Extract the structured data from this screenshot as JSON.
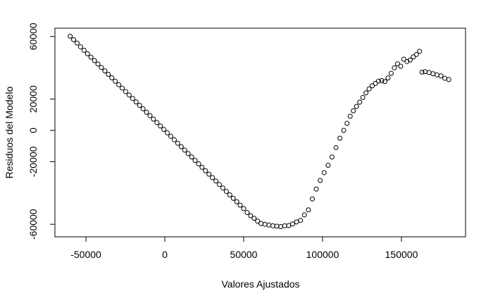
{
  "chart_data": {
    "type": "scatter",
    "xlabel": "Valores Ajustados",
    "ylabel": "Residuos del Modelo",
    "color": "#000000",
    "xlim": [
      -69643,
      190625
    ],
    "ylim": [
      -68018,
      65315
    ],
    "xticks": [
      -50000,
      0,
      50000,
      100000,
      150000
    ],
    "yticks": [
      -60000,
      -20000,
      0,
      20000,
      60000
    ],
    "x": [
      -60000,
      -57800,
      -55600,
      -53400,
      -51200,
      -49000,
      -46800,
      -44600,
      -42400,
      -40200,
      -38000,
      -35800,
      -33600,
      -31400,
      -29200,
      -27000,
      -24800,
      -22600,
      -20400,
      -18200,
      -16000,
      -13800,
      -11600,
      -9400,
      -7200,
      -5000,
      -2800,
      -600,
      1600,
      3800,
      6000,
      8200,
      10400,
      12600,
      14800,
      17000,
      19200,
      21400,
      23600,
      25800,
      28000,
      30200,
      32400,
      34600,
      36800,
      39000,
      41200,
      43400,
      45600,
      47800,
      50000,
      52200,
      54400,
      56600,
      58800,
      61000,
      63500,
      66000,
      68500,
      71000,
      73500,
      76000,
      78500,
      81000,
      83500,
      86000,
      88500,
      91000,
      93500,
      96000,
      98500,
      101000,
      103500,
      106000,
      108500,
      111000,
      113400,
      115500,
      117500,
      119500,
      121500,
      123500,
      125500,
      127500,
      129500,
      131500,
      133500,
      135500,
      137500,
      139500,
      141500,
      143500,
      145500,
      147500,
      149500,
      151500,
      153500,
      155500,
      157500,
      159500,
      161500,
      163000,
      165000,
      167500,
      170000,
      172500,
      175000,
      177500,
      180000
    ],
    "y": [
      60200,
      58000,
      55800,
      53400,
      51200,
      49000,
      46800,
      44600,
      42400,
      40200,
      38000,
      35800,
      33600,
      31400,
      29200,
      27000,
      24800,
      22600,
      20400,
      18200,
      16000,
      13800,
      11600,
      9400,
      7200,
      5000,
      2800,
      600,
      -1600,
      -3800,
      -6000,
      -8200,
      -10400,
      -12600,
      -14800,
      -17000,
      -19200,
      -21400,
      -23600,
      -25800,
      -28000,
      -30200,
      -32400,
      -34600,
      -36800,
      -39000,
      -41200,
      -43400,
      -45600,
      -47800,
      -50000,
      -52500,
      -54500,
      -56200,
      -58000,
      -59500,
      -60000,
      -60500,
      -61000,
      -61200,
      -61500,
      -61000,
      -60800,
      -59800,
      -58500,
      -57500,
      -54000,
      -50800,
      -43800,
      -37500,
      -32000,
      -27000,
      -22300,
      -17000,
      -11000,
      -5000,
      0,
      4500,
      9000,
      12500,
      15300,
      18000,
      21000,
      24000,
      26500,
      28500,
      30000,
      31500,
      31800,
      31200,
      33500,
      36500,
      40000,
      42500,
      41000,
      45500,
      44000,
      45000,
      47000,
      48500,
      50500,
      37200,
      37500,
      37000,
      36200,
      35500,
      34800,
      33300,
      32500
    ]
  }
}
